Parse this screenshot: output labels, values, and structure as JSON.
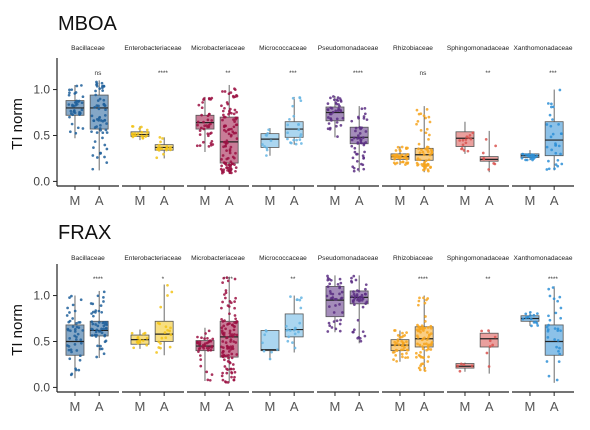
{
  "chart_data": [
    {
      "type": "box",
      "title": "MBOA",
      "ylabel": "TI norm",
      "ylim": [
        -0.05,
        1.3
      ],
      "yticks": [
        "0.0",
        "0.5",
        "1.0"
      ],
      "ytick_values": [
        0,
        0.5,
        1.0
      ],
      "groups": [
        "M",
        "A"
      ],
      "facets": [
        {
          "name": "Bacillaceae",
          "color": "#1f5f9a",
          "sig": "ns",
          "M": {
            "q1": 0.72,
            "median": 0.8,
            "q3": 0.88,
            "lo": 0.47,
            "hi": 1.05,
            "n": 40
          },
          "A": {
            "q1": 0.57,
            "median": 0.8,
            "q3": 0.94,
            "lo": 0.12,
            "hi": 1.1,
            "n": 60
          }
        },
        {
          "name": "Enterobacteriaceae",
          "color": "#f2c318",
          "sig": "****",
          "M": {
            "q1": 0.49,
            "median": 0.51,
            "q3": 0.54,
            "lo": 0.45,
            "hi": 0.6,
            "n": 20
          },
          "A": {
            "q1": 0.34,
            "median": 0.37,
            "q3": 0.4,
            "lo": 0.25,
            "hi": 0.48,
            "n": 20
          }
        },
        {
          "name": "Microbacteriaceae",
          "color": "#9b1042",
          "sig": "**",
          "M": {
            "q1": 0.57,
            "median": 0.64,
            "q3": 0.72,
            "lo": 0.32,
            "hi": 0.92,
            "n": 40
          },
          "A": {
            "q1": 0.2,
            "median": 0.43,
            "q3": 0.7,
            "lo": 0.08,
            "hi": 1.05,
            "n": 110
          }
        },
        {
          "name": "Micrococcaceae",
          "color": "#66b5e3",
          "sig": "***",
          "M": {
            "q1": 0.37,
            "median": 0.46,
            "q3": 0.52,
            "lo": 0.28,
            "hi": 0.58,
            "n": 10
          },
          "A": {
            "q1": 0.48,
            "median": 0.57,
            "q3": 0.65,
            "lo": 0.4,
            "hi": 0.92,
            "n": 22
          }
        },
        {
          "name": "Pseudomonadaceae",
          "color": "#5a2e82",
          "sig": "****",
          "M": {
            "q1": 0.66,
            "median": 0.75,
            "q3": 0.81,
            "lo": 0.48,
            "hi": 0.93,
            "n": 40
          },
          "A": {
            "q1": 0.41,
            "median": 0.48,
            "q3": 0.59,
            "lo": 0.1,
            "hi": 0.82,
            "n": 50
          }
        },
        {
          "name": "Rhizobiaceae",
          "color": "#f6a51e",
          "sig": "ns",
          "M": {
            "q1": 0.24,
            "median": 0.27,
            "q3": 0.3,
            "lo": 0.18,
            "hi": 0.38,
            "n": 40
          },
          "A": {
            "q1": 0.23,
            "median": 0.29,
            "q3": 0.36,
            "lo": 0.1,
            "hi": 0.82,
            "n": 60
          }
        },
        {
          "name": "Sphingomonadaceae",
          "color": "#d9534f",
          "sig": "**",
          "M": {
            "q1": 0.38,
            "median": 0.47,
            "q3": 0.54,
            "lo": 0.3,
            "hi": 0.65,
            "n": 14
          },
          "A": {
            "q1": 0.22,
            "median": 0.24,
            "q3": 0.27,
            "lo": 0.1,
            "hi": 0.55,
            "n": 8
          }
        },
        {
          "name": "Xanthomonadaceae",
          "color": "#2e8fd6",
          "sig": "***",
          "M": {
            "q1": 0.26,
            "median": 0.28,
            "q3": 0.3,
            "lo": 0.23,
            "hi": 0.34,
            "n": 20
          },
          "A": {
            "q1": 0.28,
            "median": 0.45,
            "q3": 0.65,
            "lo": 0.12,
            "hi": 1.0,
            "n": 30
          }
        }
      ]
    },
    {
      "type": "box",
      "title": "FRAX",
      "ylabel": "TI norm",
      "ylim": [
        -0.05,
        1.3
      ],
      "yticks": [
        "0.0",
        "0.5",
        "1.0"
      ],
      "ytick_values": [
        0,
        0.5,
        1.0
      ],
      "groups": [
        "M",
        "A"
      ],
      "facets": [
        {
          "name": "Bacillaceae",
          "color": "#1f5f9a",
          "sig": "****",
          "M": {
            "q1": 0.35,
            "median": 0.5,
            "q3": 0.68,
            "lo": 0.1,
            "hi": 1.0,
            "n": 45
          },
          "A": {
            "q1": 0.56,
            "median": 0.62,
            "q3": 0.72,
            "lo": 0.32,
            "hi": 1.05,
            "n": 50
          }
        },
        {
          "name": "Enterobacteriaceae",
          "color": "#f2c318",
          "sig": "*",
          "M": {
            "q1": 0.47,
            "median": 0.52,
            "q3": 0.57,
            "lo": 0.42,
            "hi": 0.63,
            "n": 15
          },
          "A": {
            "q1": 0.5,
            "median": 0.58,
            "q3": 0.72,
            "lo": 0.35,
            "hi": 1.12,
            "n": 20
          }
        },
        {
          "name": "Microbacteriaceae",
          "color": "#9b1042",
          "sig": "****",
          "M": {
            "q1": 0.4,
            "median": 0.45,
            "q3": 0.51,
            "lo": 0.07,
            "hi": 0.65,
            "n": 40
          },
          "A": {
            "q1": 0.33,
            "median": 0.55,
            "q3": 0.72,
            "lo": 0.05,
            "hi": 1.2,
            "n": 110
          }
        },
        {
          "name": "Micrococcaceae",
          "color": "#66b5e3",
          "sig": "**",
          "M": {
            "q1": 0.4,
            "median": 0.41,
            "q3": 0.62,
            "lo": 0.3,
            "hi": 0.62,
            "n": 8
          },
          "A": {
            "q1": 0.55,
            "median": 0.63,
            "q3": 0.8,
            "lo": 0.38,
            "hi": 1.0,
            "n": 20
          }
        },
        {
          "name": "Pseudomonadaceae",
          "color": "#5a2e82",
          "sig": "",
          "M": {
            "q1": 0.77,
            "median": 0.95,
            "q3": 1.1,
            "lo": 0.6,
            "hi": 1.22,
            "n": 40
          },
          "A": {
            "q1": 0.91,
            "median": 0.98,
            "q3": 1.05,
            "lo": 0.48,
            "hi": 1.22,
            "n": 45
          }
        },
        {
          "name": "Rhizobiaceae",
          "color": "#f6a51e",
          "sig": "****",
          "M": {
            "q1": 0.4,
            "median": 0.46,
            "q3": 0.52,
            "lo": 0.28,
            "hi": 0.62,
            "n": 40
          },
          "A": {
            "q1": 0.44,
            "median": 0.53,
            "q3": 0.66,
            "lo": 0.18,
            "hi": 1.0,
            "n": 70
          }
        },
        {
          "name": "Sphingomonadaceae",
          "color": "#d9534f",
          "sig": "**",
          "M": {
            "q1": 0.21,
            "median": 0.23,
            "q3": 0.26,
            "lo": 0.17,
            "hi": 0.27,
            "n": 5
          },
          "A": {
            "q1": 0.44,
            "median": 0.53,
            "q3": 0.59,
            "lo": 0.15,
            "hi": 0.62,
            "n": 8
          }
        },
        {
          "name": "Xanthomonadaceae",
          "color": "#2e8fd6",
          "sig": "****",
          "M": {
            "q1": 0.72,
            "median": 0.75,
            "q3": 0.78,
            "lo": 0.67,
            "hi": 0.82,
            "n": 15
          },
          "A": {
            "q1": 0.35,
            "median": 0.5,
            "q3": 0.68,
            "lo": 0.05,
            "hi": 1.1,
            "n": 30
          }
        }
      ]
    }
  ]
}
